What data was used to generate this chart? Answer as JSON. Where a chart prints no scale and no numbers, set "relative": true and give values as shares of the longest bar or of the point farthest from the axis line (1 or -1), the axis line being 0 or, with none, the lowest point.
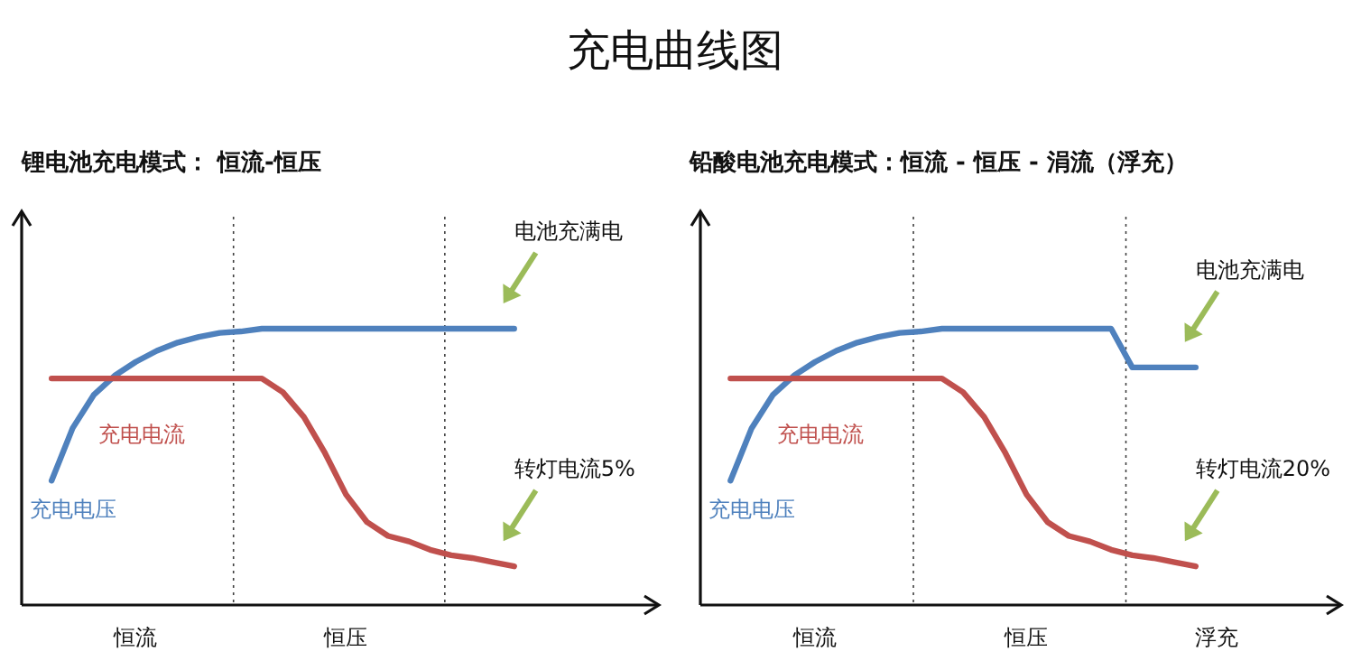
{
  "chart_data": [
    {
      "type": "other",
      "title": "充电曲线图"
    },
    {
      "type": "line",
      "title": "锂电池充电模式： 恒流-恒压",
      "relative": true,
      "grid": false,
      "legend": false,
      "categories": [
        null,
        null,
        null,
        null,
        "恒流",
        null,
        null,
        null,
        null,
        null,
        null,
        null,
        null,
        null,
        "恒压",
        null,
        null,
        null,
        null,
        null,
        null,
        null,
        null
      ],
      "series": [
        {
          "name": "充电电压",
          "color": "#4f81bd",
          "values": [
            0.45,
            0.64,
            0.76,
            0.83,
            0.88,
            0.92,
            0.95,
            0.97,
            0.985,
            0.99,
            1.0,
            1.0,
            1.0,
            1.0,
            1.0,
            1.0,
            1.0,
            1.0,
            1.0,
            1.0,
            1.0,
            1.0,
            1.0
          ]
        },
        {
          "name": "充电电流",
          "color": "#c0504d",
          "values": [
            0.82,
            0.82,
            0.82,
            0.82,
            0.82,
            0.82,
            0.82,
            0.82,
            0.82,
            0.82,
            0.82,
            0.77,
            0.68,
            0.55,
            0.4,
            0.3,
            0.25,
            0.23,
            0.2,
            0.18,
            0.17,
            0.155,
            0.14
          ]
        }
      ],
      "annotations": [
        "电池充满电",
        "转灯电流5%"
      ]
    },
    {
      "type": "line",
      "title": "铅酸电池充电模式：恒流 - 恒压 - 涓流（浮充）",
      "relative": true,
      "grid": false,
      "legend": false,
      "categories": [
        null,
        null,
        null,
        null,
        "恒流",
        null,
        null,
        null,
        null,
        null,
        null,
        null,
        null,
        null,
        "恒压",
        null,
        null,
        null,
        null,
        null,
        null,
        null,
        null,
        "浮充"
      ],
      "series": [
        {
          "name": "充电电压",
          "color": "#4f81bd",
          "values": [
            0.45,
            0.64,
            0.76,
            0.83,
            0.88,
            0.92,
            0.95,
            0.97,
            0.985,
            0.99,
            1.0,
            1.0,
            1.0,
            1.0,
            1.0,
            1.0,
            1.0,
            1.0,
            1.0,
            0.86,
            0.86,
            0.86,
            0.86,
            null
          ]
        },
        {
          "name": "充电电流",
          "color": "#c0504d",
          "values": [
            0.82,
            0.82,
            0.82,
            0.82,
            0.82,
            0.82,
            0.82,
            0.82,
            0.82,
            0.82,
            0.82,
            0.77,
            0.68,
            0.55,
            0.4,
            0.3,
            0.25,
            0.23,
            0.2,
            0.18,
            0.17,
            0.155,
            0.14,
            null
          ]
        }
      ],
      "annotations": [
        "电池充满电",
        "转灯电流20%"
      ]
    }
  ]
}
